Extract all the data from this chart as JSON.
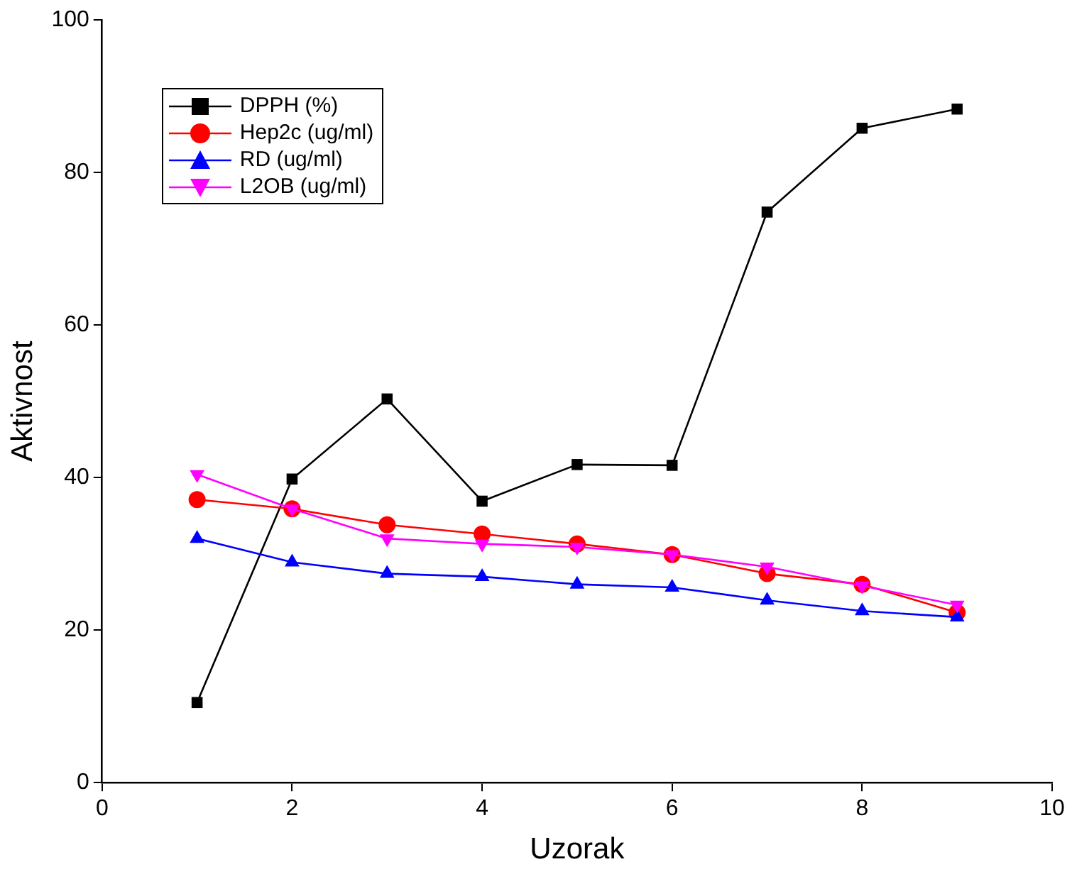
{
  "chart_data": {
    "type": "line",
    "xlabel": "Uzorak",
    "ylabel": "Aktivnost",
    "x": [
      1,
      2,
      3,
      4,
      5,
      6,
      7,
      8,
      9
    ],
    "xlim": [
      0,
      10
    ],
    "xticks": [
      0,
      2,
      4,
      6,
      8,
      10
    ],
    "ylim": [
      0,
      100
    ],
    "yticks": [
      0,
      20,
      40,
      60,
      80,
      100
    ],
    "grid": false,
    "legend": "top left",
    "line_style": "solid",
    "series": [
      {
        "name": "DPPH (%)",
        "color": "#000000",
        "marker": "square",
        "values": [
          10.5,
          39.8,
          50.3,
          36.9,
          41.7,
          41.6,
          74.8,
          85.8,
          88.3
        ]
      },
      {
        "name": "Hep2c (ug/ml)",
        "color": "#ff0000",
        "marker": "circle",
        "values": [
          37.1,
          35.9,
          33.8,
          32.6,
          31.3,
          29.9,
          27.4,
          26.0,
          22.3
        ]
      },
      {
        "name": "RD (ug/ml)",
        "color": "#0000ff",
        "marker": "triangle",
        "values": [
          32.0,
          28.9,
          27.4,
          27.0,
          26.0,
          25.6,
          23.9,
          22.5,
          21.7
        ]
      },
      {
        "name": "L2OB (ug/ml)",
        "color": "#ff00ff",
        "marker": "triangle-down",
        "values": [
          40.4,
          35.9,
          32.0,
          31.3,
          30.9,
          29.9,
          28.3,
          25.8,
          23.3
        ]
      }
    ]
  }
}
